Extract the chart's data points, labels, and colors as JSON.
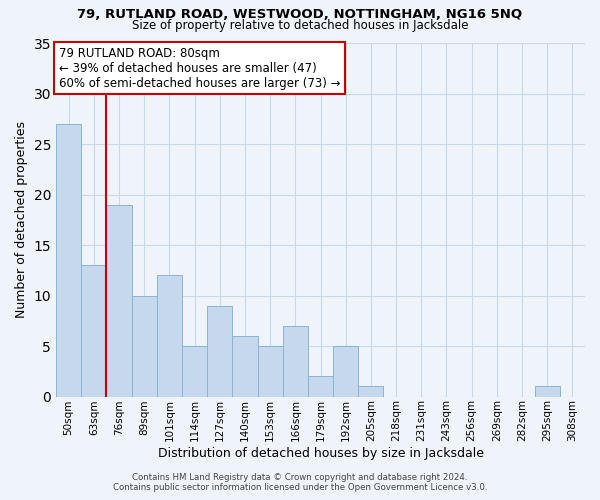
{
  "title1": "79, RUTLAND ROAD, WESTWOOD, NOTTINGHAM, NG16 5NQ",
  "title2": "Size of property relative to detached houses in Jacksdale",
  "xlabel": "Distribution of detached houses by size in Jacksdale",
  "ylabel": "Number of detached properties",
  "bar_labels": [
    "50sqm",
    "63sqm",
    "76sqm",
    "89sqm",
    "101sqm",
    "114sqm",
    "127sqm",
    "140sqm",
    "153sqm",
    "166sqm",
    "179sqm",
    "192sqm",
    "205sqm",
    "218sqm",
    "231sqm",
    "243sqm",
    "256sqm",
    "269sqm",
    "282sqm",
    "295sqm",
    "308sqm"
  ],
  "bar_values": [
    27,
    13,
    19,
    10,
    12,
    5,
    9,
    6,
    5,
    7,
    2,
    5,
    1,
    0,
    0,
    0,
    0,
    0,
    0,
    1,
    0
  ],
  "bar_color": "#c5d8ed",
  "bar_edge_color": "#8ab4d4",
  "grid_color": "#c8d8e8",
  "bg_color": "#eef4fa",
  "vline_color": "#cc0000",
  "ylim": [
    0,
    35
  ],
  "yticks": [
    0,
    5,
    10,
    15,
    20,
    25,
    30,
    35
  ],
  "annotation_title": "79 RUTLAND ROAD: 80sqm",
  "annotation_line1": "← 39% of detached houses are smaller (47)",
  "annotation_line2": "60% of semi-detached houses are larger (73) →",
  "annotation_box_color": "#ffffff",
  "annotation_box_edge": "#cc0000",
  "footer1": "Contains HM Land Registry data © Crown copyright and database right 2024.",
  "footer2": "Contains public sector information licensed under the Open Government Licence v3.0."
}
